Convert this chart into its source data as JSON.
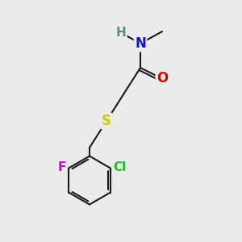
{
  "background_color": "#ebebeb",
  "bond_color": "#1a1a1a",
  "bond_width": 1.5,
  "atom_colors": {
    "N": "#1414cc",
    "O": "#cc0000",
    "S": "#cccc00",
    "Cl": "#22bb22",
    "F": "#cc00cc",
    "H": "#5a8a8a",
    "C": "#1a1a1a"
  },
  "font_size": 11,
  "fig_size": [
    3.0,
    3.0
  ],
  "dpi": 100,
  "xlim": [
    0,
    10
  ],
  "ylim": [
    0,
    10
  ]
}
